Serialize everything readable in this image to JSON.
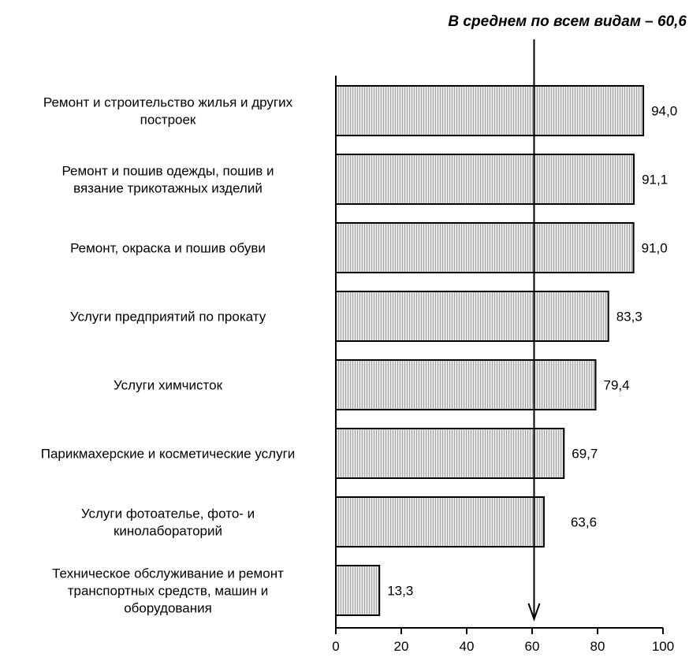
{
  "chart_data": {
    "type": "bar",
    "orientation": "horizontal",
    "categories": [
      [
        "Ремонт и строительство жилья и других",
        "построек"
      ],
      [
        "Ремонт и пошив одежды, пошив и",
        "вязание трикотажных изделий"
      ],
      [
        "Ремонт, окраска и пошив обуви"
      ],
      [
        "Услуги предприятий по прокату"
      ],
      [
        "Услуги химчисток"
      ],
      [
        "Парикмахерские и косметические услуги"
      ],
      [
        "Услуги фотоателье, фото- и",
        "кинолабораторий"
      ],
      [
        "Техническое обслуживание и ремонт",
        "транспортных средств, машин и",
        "оборудования"
      ]
    ],
    "values": [
      94.0,
      91.1,
      91.0,
      83.3,
      79.4,
      69.7,
      63.6,
      13.3
    ],
    "value_labels": [
      "94,0",
      "91,1",
      "91,0",
      "83,3",
      "79,4",
      "69,7",
      "63,6",
      "13,3"
    ],
    "xlim": [
      0,
      100
    ],
    "xticks": [
      0,
      20,
      40,
      60,
      80,
      100
    ],
    "reference_line": {
      "value": 60.6,
      "label": "В среднем по всем видам – 60,6"
    },
    "grid": false,
    "bar_fill": "#d9d9d9",
    "bar_stroke": "#000000"
  }
}
